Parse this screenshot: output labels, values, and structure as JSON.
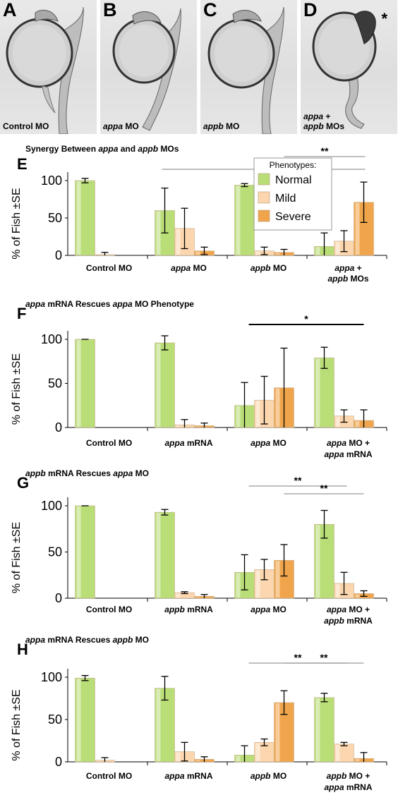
{
  "photos": [
    {
      "label": "A",
      "caption_parts": [
        "Control MO"
      ],
      "asterisk": ""
    },
    {
      "label": "B",
      "caption_parts": [
        "appa",
        " MO"
      ],
      "asterisk": ""
    },
    {
      "label": "C",
      "caption_parts": [
        "appb",
        " MO"
      ],
      "asterisk": ""
    },
    {
      "label": "D",
      "caption_parts": [
        "appa",
        " +",
        "appb",
        " MOs"
      ],
      "asterisk": "*"
    }
  ],
  "legend": {
    "title": "Phenotypes:",
    "entries": [
      "Normal",
      "Mild",
      "Severe"
    ]
  },
  "colors": {
    "normal": "#b9dd77",
    "mild": "#fbd6ae",
    "severe": "#f0a54c",
    "axis": "#000000",
    "sigline": "#999999"
  },
  "chart_data": [
    {
      "type": "bar",
      "panel_letter": "E",
      "title_parts": [
        {
          "t": "Synergy Between ",
          "i": false
        },
        {
          "t": "appa",
          "i": true
        },
        {
          "t": " and ",
          "i": false
        },
        {
          "t": "appb",
          "i": true
        },
        {
          "t": " MOs",
          "i": false
        }
      ],
      "ylabel": "% of  Fish ±SE",
      "yticks": [
        "100",
        "50",
        "0"
      ],
      "ylim": [
        0,
        100
      ],
      "categories": [
        [
          [
            {
              "t": "Control MO",
              "i": false
            }
          ]
        ],
        [
          [
            {
              "t": "appa",
              "i": true
            },
            {
              "t": " MO",
              "i": false
            }
          ]
        ],
        [
          [
            {
              "t": "appb",
              "i": true
            },
            {
              "t": " MO",
              "i": false
            }
          ]
        ],
        [
          [
            {
              "t": "appa",
              "i": true
            },
            {
              "t": " +",
              "i": false
            }
          ],
          [
            {
              "t": "appb",
              "i": true
            },
            {
              "t": " MOs",
              "i": false
            }
          ]
        ]
      ],
      "series": [
        {
          "key": "normal",
          "values": [
            100,
            60,
            94,
            12
          ],
          "err": [
            3,
            30,
            2,
            18
          ]
        },
        {
          "key": "mild",
          "values": [
            1,
            36,
            6,
            19
          ],
          "err": [
            3,
            27,
            5,
            14
          ]
        },
        {
          "key": "severe",
          "values": [
            0,
            6,
            4,
            71
          ],
          "err": [
            0,
            5,
            4,
            27
          ]
        }
      ],
      "significance": [
        {
          "from": 1,
          "to": 3,
          "label": "**",
          "style": "gray"
        },
        {
          "from": 2,
          "to": 3,
          "label": "**",
          "style": "gray"
        }
      ]
    },
    {
      "type": "bar",
      "panel_letter": "F",
      "title_parts": [
        {
          "t": "appa",
          "i": true
        },
        {
          "t": " mRNA Rescues ",
          "i": false
        },
        {
          "t": "appa",
          "i": true
        },
        {
          "t": " MO Phenotype",
          "i": false
        }
      ],
      "ylabel": "% of  Fish ±SE",
      "yticks": [
        "100",
        "50",
        "0"
      ],
      "ylim": [
        0,
        100
      ],
      "categories": [
        [
          [
            {
              "t": "Control MO",
              "i": false
            }
          ]
        ],
        [
          [
            {
              "t": "appa",
              "i": true
            },
            {
              "t": " mRNA",
              "i": false
            }
          ]
        ],
        [
          [
            {
              "t": "appa",
              "i": true
            },
            {
              "t": " MO",
              "i": false
            }
          ]
        ],
        [
          [
            {
              "t": "appa",
              "i": true
            },
            {
              "t": " MO +",
              "i": false
            }
          ],
          [
            {
              "t": "appa",
              "i": true
            },
            {
              "t": " mRNA",
              "i": false
            }
          ]
        ]
      ],
      "series": [
        {
          "key": "normal",
          "values": [
            100,
            96,
            25,
            79
          ],
          "err": [
            0,
            8,
            26,
            12
          ]
        },
        {
          "key": "mild",
          "values": [
            0,
            3,
            31,
            13
          ],
          "err": [
            0,
            6,
            27,
            7
          ]
        },
        {
          "key": "severe",
          "values": [
            0,
            2,
            45,
            8
          ],
          "err": [
            0,
            3,
            45,
            12
          ]
        }
      ],
      "significance": [
        {
          "from": 2,
          "to": 3,
          "label": "*",
          "style": "black"
        }
      ]
    },
    {
      "type": "bar",
      "panel_letter": "G",
      "title_parts": [
        {
          "t": "appb",
          "i": true
        },
        {
          "t": " mRNA Rescues ",
          "i": false
        },
        {
          "t": "appa",
          "i": true
        },
        {
          "t": " MO",
          "i": false
        }
      ],
      "ylabel": "% of  Fish ±SE",
      "yticks": [
        "100",
        "50",
        "0"
      ],
      "ylim": [
        0,
        100
      ],
      "categories": [
        [
          [
            {
              "t": "Control MO",
              "i": false
            }
          ]
        ],
        [
          [
            {
              "t": "appb",
              "i": true
            },
            {
              "t": " mRNA",
              "i": false
            }
          ]
        ],
        [
          [
            {
              "t": "appa",
              "i": true
            },
            {
              "t": " MO",
              "i": false
            }
          ]
        ],
        [
          [
            {
              "t": "appa",
              "i": true
            },
            {
              "t": " MO +",
              "i": false
            }
          ],
          [
            {
              "t": "appb",
              "i": true
            },
            {
              "t": " mRNA",
              "i": false
            }
          ]
        ]
      ],
      "series": [
        {
          "key": "normal",
          "values": [
            100,
            93,
            28,
            80
          ],
          "err": [
            0,
            3,
            19,
            15
          ]
        },
        {
          "key": "mild",
          "values": [
            0,
            6,
            31,
            16
          ],
          "err": [
            0,
            1,
            11,
            12
          ]
        },
        {
          "key": "severe",
          "values": [
            0,
            2,
            41,
            5
          ],
          "err": [
            0,
            2,
            17,
            3
          ]
        }
      ],
      "significance": [
        {
          "from": 2,
          "to": 3,
          "label": "**",
          "style": "gray"
        },
        {
          "from": 3,
          "to": 3,
          "label": "**",
          "style": "gray"
        }
      ]
    },
    {
      "type": "bar",
      "panel_letter": "H",
      "title_parts": [
        {
          "t": "appa",
          "i": true
        },
        {
          "t": " mRNA Rescues ",
          "i": false
        },
        {
          "t": "appb",
          "i": true
        },
        {
          "t": " MO",
          "i": false
        }
      ],
      "ylabel": "% of  Fish ±SE",
      "yticks": [
        "100",
        "50",
        "0"
      ],
      "ylim": [
        0,
        100
      ],
      "categories": [
        [
          [
            {
              "t": "Control MO",
              "i": false
            }
          ]
        ],
        [
          [
            {
              "t": "appa",
              "i": true
            },
            {
              "t": " mRNA",
              "i": false
            }
          ]
        ],
        [
          [
            {
              "t": "appb",
              "i": true
            },
            {
              "t": " MO",
              "i": false
            }
          ]
        ],
        [
          [
            {
              "t": "appb",
              "i": true
            },
            {
              "t": " MO +",
              "i": false
            }
          ],
          [
            {
              "t": "appa",
              "i": true
            },
            {
              "t": " mRNA",
              "i": false
            }
          ]
        ]
      ],
      "series": [
        {
          "key": "normal",
          "values": [
            99,
            87,
            8,
            76
          ],
          "err": [
            3,
            14,
            11,
            5
          ]
        },
        {
          "key": "mild",
          "values": [
            2,
            12,
            23,
            21
          ],
          "err": [
            3,
            11,
            4,
            2
          ]
        },
        {
          "key": "severe",
          "values": [
            0,
            3,
            70,
            4
          ],
          "err": [
            0,
            3,
            14,
            7
          ]
        }
      ],
      "significance": [
        {
          "from": 2,
          "to": 3,
          "label": "**",
          "style": "gray"
        },
        {
          "from": 3,
          "to": 3,
          "label": "**",
          "style": "gray"
        }
      ]
    }
  ]
}
